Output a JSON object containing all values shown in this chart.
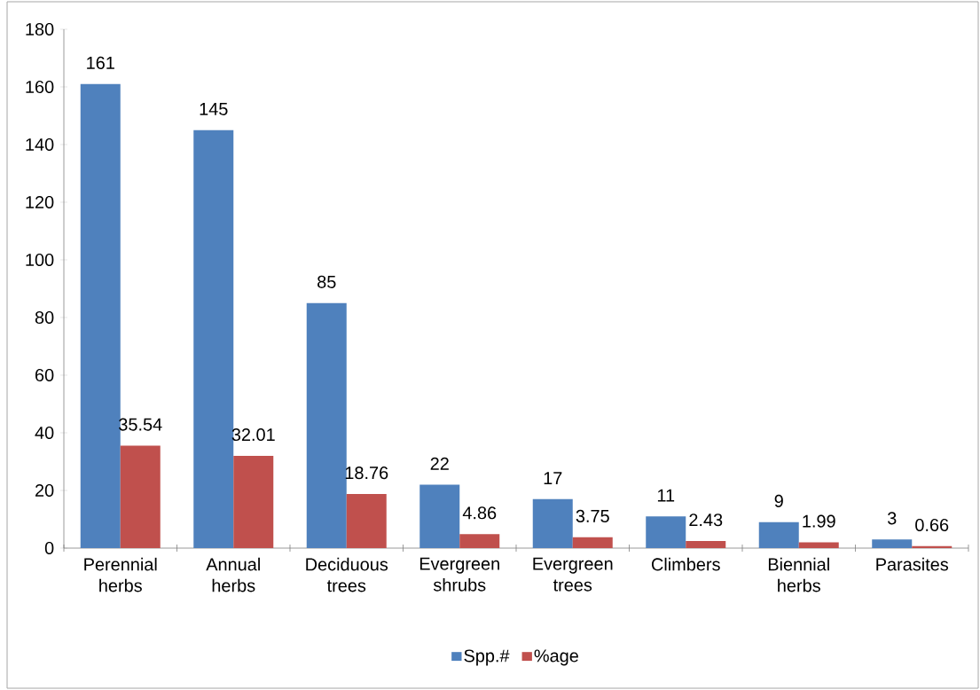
{
  "chart_data": {
    "type": "bar",
    "categories": [
      "Perennial herbs",
      "Annual herbs",
      "Deciduous trees",
      "Evergreen shrubs",
      "Evergreen trees",
      "Climbers",
      "Biennial herbs",
      "Parasites"
    ],
    "series": [
      {
        "name": "Spp.#",
        "color": "#4f81bd",
        "values": [
          161,
          145,
          85,
          22,
          17,
          11,
          9,
          3
        ]
      },
      {
        "name": "%age",
        "color": "#c0504d",
        "values": [
          35.54,
          32.01,
          18.76,
          4.86,
          3.75,
          2.43,
          1.99,
          0.66
        ]
      }
    ],
    "ylim": [
      0,
      180
    ],
    "yticks": [
      0,
      20,
      40,
      60,
      80,
      100,
      120,
      140,
      160,
      180
    ],
    "data_labels": true,
    "legend": "bottom"
  }
}
